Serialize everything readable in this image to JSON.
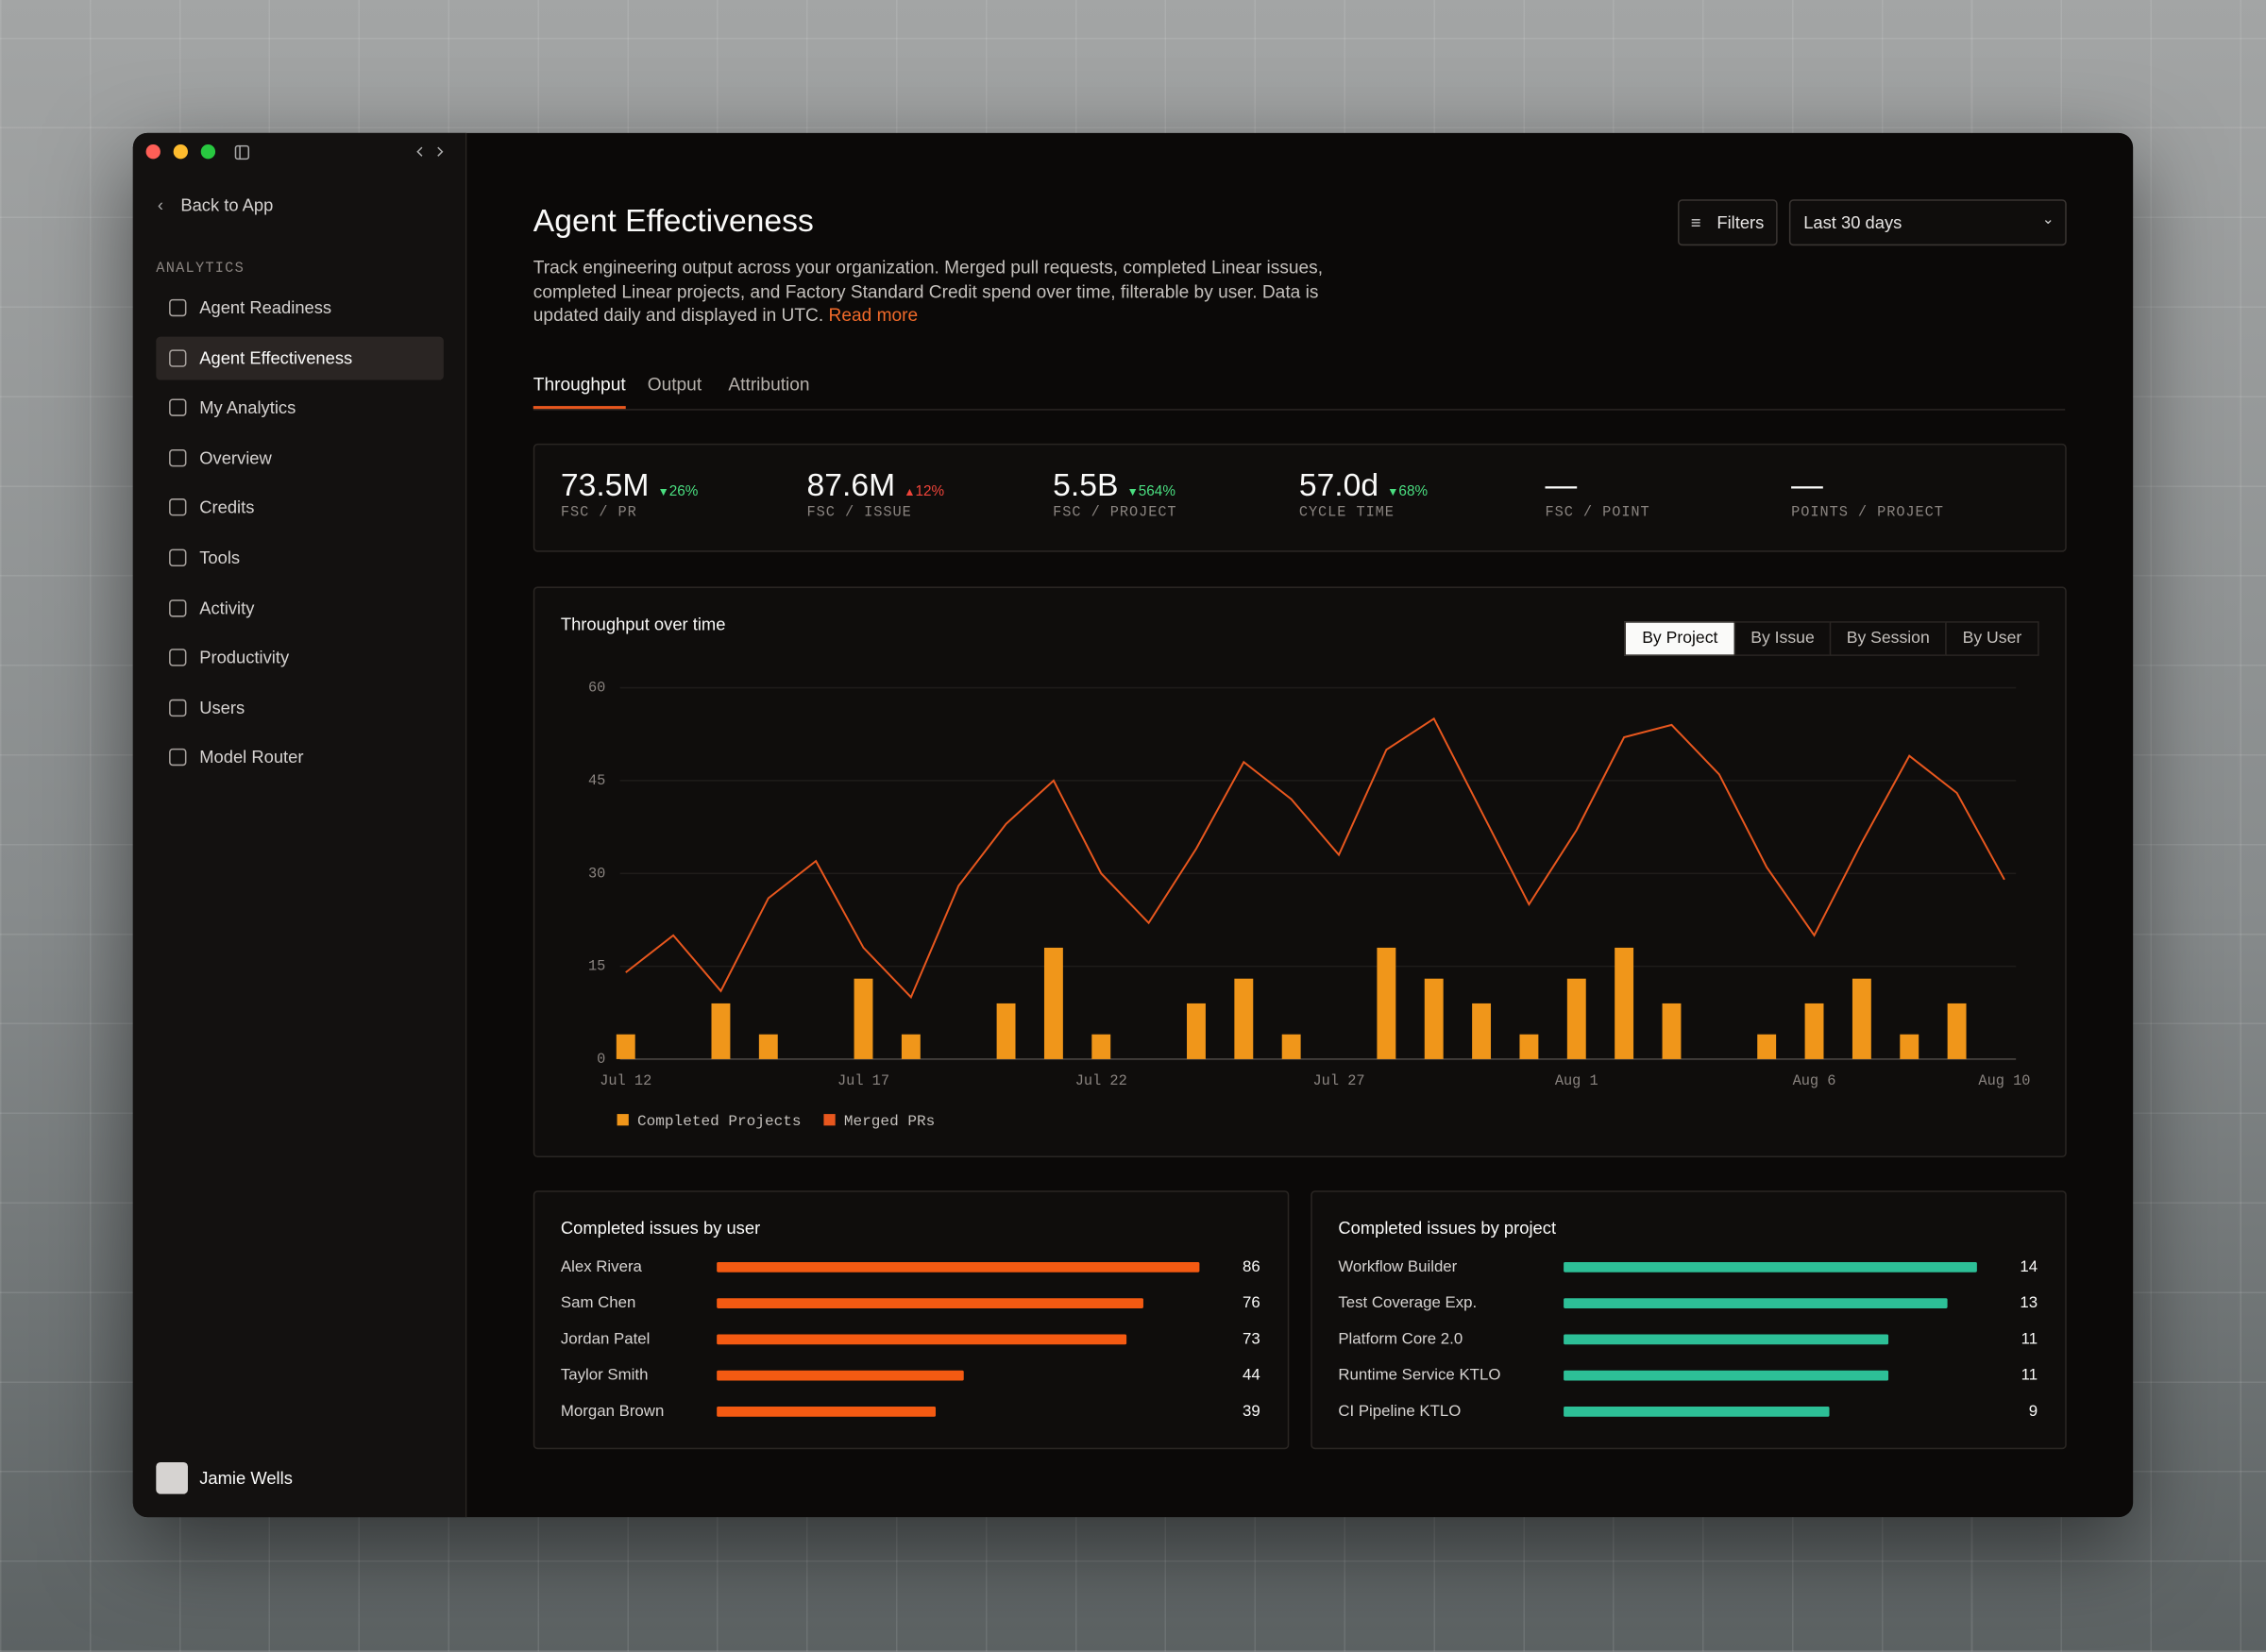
{
  "sidebar": {
    "back": "Back to App",
    "section": "ANALYTICS",
    "items": [
      "Agent Readiness",
      "Agent Effectiveness",
      "My Analytics",
      "Overview",
      "Credits",
      "Tools",
      "Activity",
      "Productivity",
      "Users",
      "Model Router"
    ],
    "active": 1,
    "user": "Jamie Wells"
  },
  "header": {
    "title": "Agent Effectiveness",
    "description": "Track engineering output across your organization. Merged pull requests, completed Linear issues, completed Linear projects, and Factory Standard Credit spend over time, filterable by user. Data is updated daily and displayed in UTC.",
    "link": "Read more",
    "filters": "Filters",
    "range": "Last 30 days"
  },
  "tabs": {
    "items": [
      "Throughput",
      "Output",
      "Attribution"
    ],
    "active": 0
  },
  "kpis": [
    {
      "value": "73.5M",
      "change": "26%",
      "direction": "down",
      "color": "#4ade80",
      "label": "FSC / PR"
    },
    {
      "value": "87.6M",
      "change": "12%",
      "direction": "up",
      "color": "#f0443a",
      "label": "FSC / ISSUE"
    },
    {
      "value": "5.5B",
      "change": "564%",
      "direction": "down",
      "color": "#4ade80",
      "label": "FSC / PROJECT"
    },
    {
      "value": "57.0d",
      "change": "68%",
      "direction": "down",
      "color": "#4ade80",
      "label": "CYCLE TIME"
    },
    {
      "value": "—",
      "label": "FSC / POINT"
    },
    {
      "value": "—",
      "label": "POINTS / PROJECT"
    }
  ],
  "chart_data": [
    {
      "type": "combo",
      "title": "Throughput over time",
      "views": [
        "By Project",
        "By Issue",
        "By Session",
        "By User"
      ],
      "active_view": 0,
      "categories": [
        "Jul 12",
        null,
        null,
        null,
        null,
        "Jul 17",
        null,
        null,
        null,
        null,
        "Jul 22",
        null,
        null,
        null,
        null,
        "Jul 27",
        null,
        null,
        null,
        null,
        "Aug 1",
        null,
        null,
        null,
        null,
        "Aug 6",
        null,
        null,
        null,
        "Aug 10"
      ],
      "series": [
        {
          "name": "Completed Projects",
          "type": "bar",
          "color": "#f0961a",
          "values": [
            4,
            0,
            9,
            4,
            0,
            13,
            4,
            0,
            9,
            18,
            4,
            0,
            9,
            13,
            4,
            0,
            18,
            13,
            9,
            4,
            13,
            18,
            9,
            0,
            4,
            9,
            13,
            4,
            9,
            0
          ]
        },
        {
          "name": "Merged PRs",
          "type": "line",
          "color": "#e8571e",
          "values": [
            14,
            20,
            11,
            26,
            32,
            18,
            10,
            28,
            38,
            45,
            30,
            22,
            34,
            48,
            42,
            33,
            50,
            55,
            40,
            25,
            37,
            52,
            54,
            46,
            31,
            20,
            35,
            49,
            43,
            29
          ]
        }
      ],
      "ylim": [
        0,
        60
      ],
      "yticks": [
        0,
        15,
        30,
        45,
        60
      ],
      "grid": true
    },
    {
      "type": "hbar",
      "title": "Completed issues by user",
      "categories": [
        "Alex Rivera",
        "Sam Chen",
        "Jordan Patel",
        "Taylor Smith",
        "Morgan Brown"
      ],
      "values": [
        86,
        76,
        73,
        44,
        39
      ],
      "color": "#f45a12"
    },
    {
      "type": "hbar",
      "title": "Completed issues by project",
      "categories": [
        "Workflow Builder",
        "Test Coverage Exp.",
        "Platform Core 2.0",
        "Runtime Service KTLO",
        "CI Pipeline KTLO"
      ],
      "values": [
        14,
        13,
        11,
        11,
        9
      ],
      "color": "#2dbf97"
    }
  ]
}
